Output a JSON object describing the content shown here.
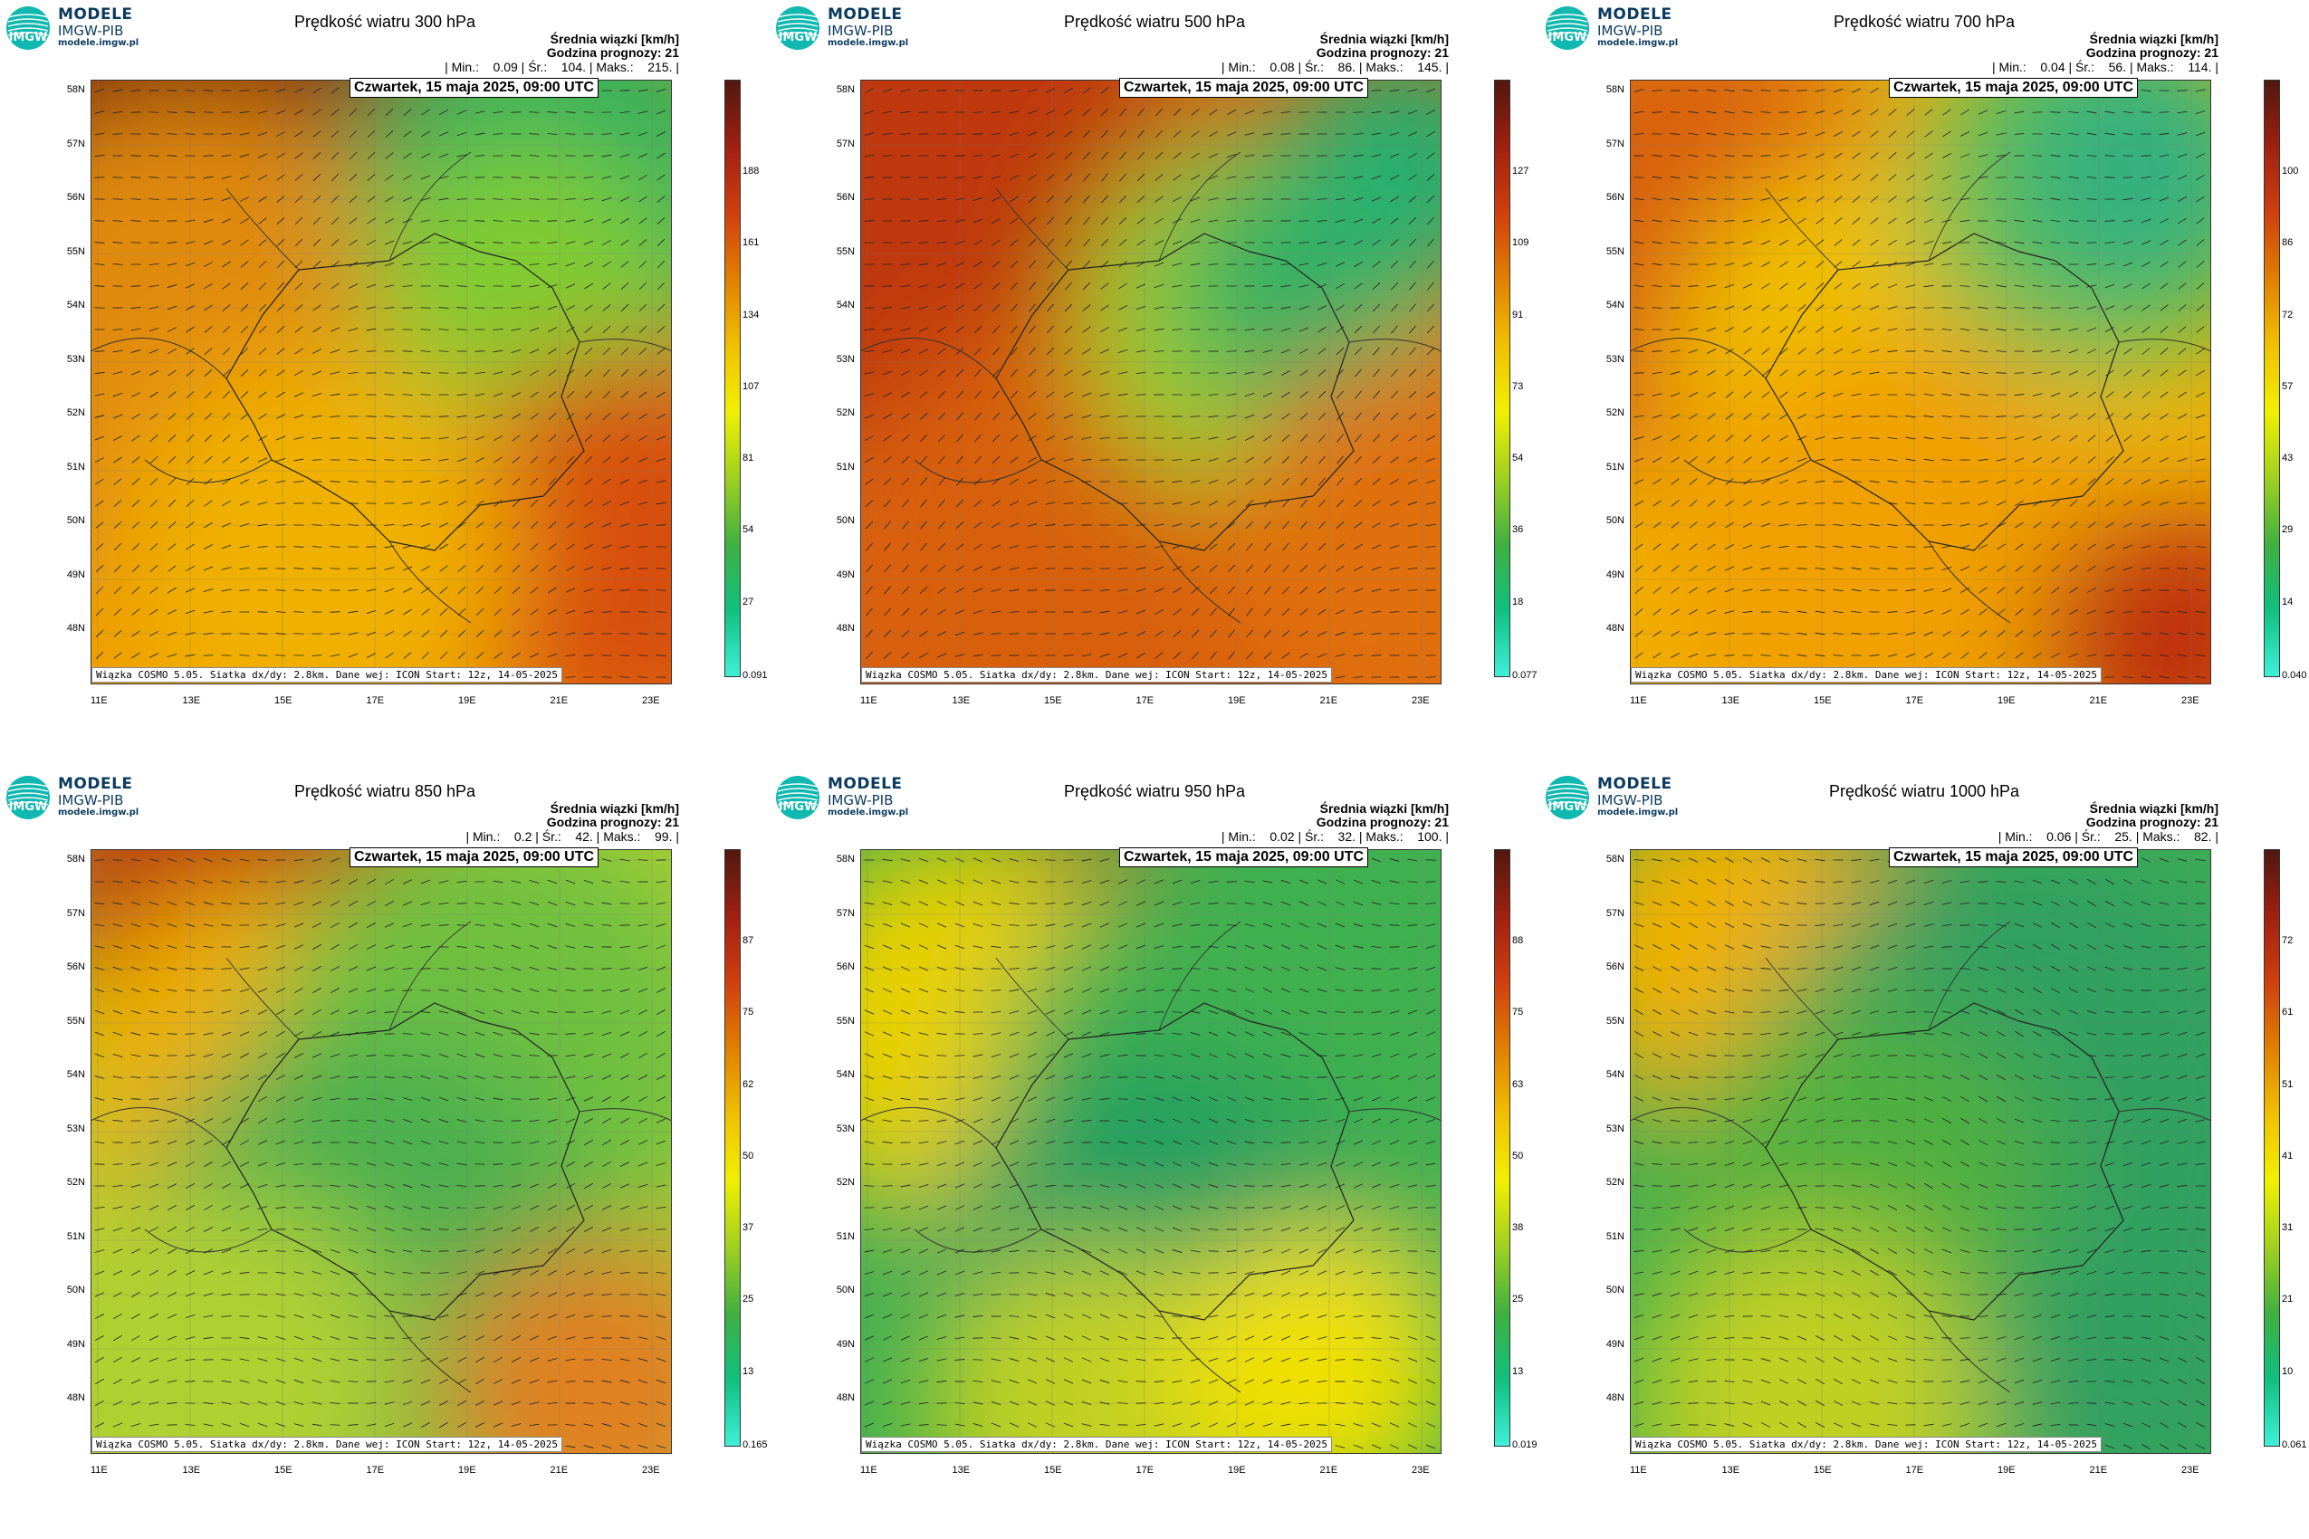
{
  "brand": {
    "name": "MODELE",
    "org": "IMGW-PIB",
    "url": "modele.imgw.pl",
    "logo_text": "IMGW"
  },
  "common": {
    "subtitle": "Średnia wiązki [km/h]",
    "forecast_hour": "Godzina prognozy: 21",
    "date": "Czwartek, 15 maja 2025, 09:00 UTC",
    "footer": "Wiązka COSMO 5.05. Siatka dx/dy: 2.8km. Dane wej: ICON Start: 12z, 14-05-2025",
    "lat_labels": [
      "58N",
      "57N",
      "56N",
      "55N",
      "54N",
      "53N",
      "52N",
      "51N",
      "50N",
      "49N",
      "48N"
    ],
    "lon_labels": [
      "11E",
      "13E",
      "15E",
      "17E",
      "19E",
      "21E",
      "23E"
    ]
  },
  "panels": [
    {
      "title": "Prędkość wiatru 300 hPa",
      "stats": "| Min.:    0.09 | Śr.:    104. | Maks.:    215. |",
      "cbar_ticks": [
        "0.091",
        "27",
        "54",
        "81",
        "107",
        "134",
        "161",
        "188"
      ]
    },
    {
      "title": "Prędkość wiatru 500 hPa",
      "stats": "| Min.:    0.08 | Śr.:    86. | Maks.:    145. |",
      "cbar_ticks": [
        "0.077",
        "18",
        "36",
        "54",
        "73",
        "91",
        "109",
        "127"
      ]
    },
    {
      "title": "Prędkość wiatru 700 hPa",
      "stats": "| Min.:    0.04 | Śr.:    56. | Maks.:    114. |",
      "cbar_ticks": [
        "0.040",
        "14",
        "29",
        "43",
        "57",
        "72",
        "86",
        "100"
      ]
    },
    {
      "title": "Prędkość wiatru 850 hPa",
      "stats": "| Min.:    0.2 | Śr.:    42. | Maks.:    99. |",
      "cbar_ticks": [
        "0.165",
        "13",
        "25",
        "37",
        "50",
        "62",
        "75",
        "87"
      ]
    },
    {
      "title": "Prędkość wiatru 950 hPa",
      "stats": "| Min.:    0.02 | Śr.:    32. | Maks.:    100. |",
      "cbar_ticks": [
        "0.019",
        "13",
        "25",
        "38",
        "50",
        "63",
        "75",
        "88"
      ]
    },
    {
      "title": "Prędkość wiatru 1000 hPa",
      "stats": "| Min.:    0.06 | Śr.:    25. | Maks.:    82. |",
      "cbar_ticks": [
        "0.061",
        "10",
        "21",
        "31",
        "41",
        "51",
        "61",
        "72"
      ]
    }
  ],
  "colors": {
    "scale": [
      "#40f0d8",
      "#10c080",
      "#40b040",
      "#a0d020",
      "#f0f000",
      "#f0c000",
      "#e08000",
      "#d04010",
      "#a02010",
      "#501810"
    ]
  }
}
